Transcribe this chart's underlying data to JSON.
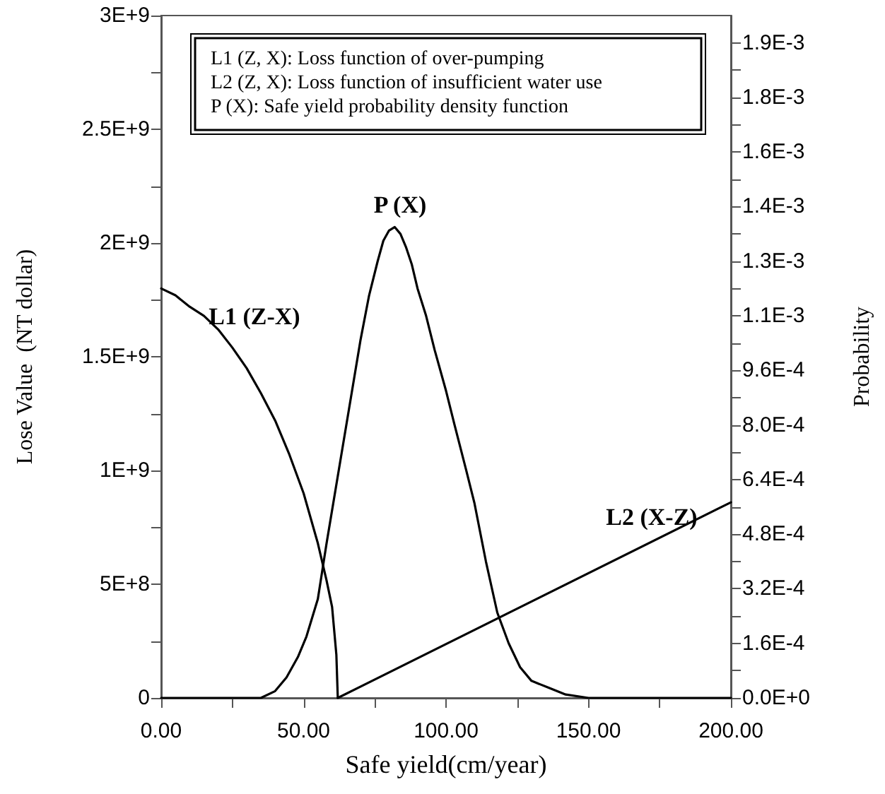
{
  "chart_data": {
    "type": "line",
    "xlabel": "Safe yield(cm/year)",
    "ylabel": "Lose Value  (NT dollar)",
    "y2label": "Probability",
    "xlim": [
      0,
      200
    ],
    "xticks": [
      {
        "value": 0,
        "label": "0.00"
      },
      {
        "value": 25,
        "label": null
      },
      {
        "value": 50,
        "label": "50.00"
      },
      {
        "value": 75,
        "label": null
      },
      {
        "value": 100,
        "label": "100.00"
      },
      {
        "value": 125,
        "label": null
      },
      {
        "value": 150,
        "label": "150.00"
      },
      {
        "value": 175,
        "label": null
      },
      {
        "value": 200,
        "label": "200.00"
      }
    ],
    "ylim": [
      0,
      3000000000
    ],
    "yticks": [
      0,
      {
        "value": 250000000,
        "label": null
      },
      {
        "value": 500000000,
        "label": "5E+8"
      },
      {
        "value": 750000000,
        "label": null
      },
      {
        "value": 1000000000,
        "label": "1E+9"
      },
      {
        "value": 1250000000,
        "label": null
      },
      {
        "value": 1500000000,
        "label": "1.5E+9"
      },
      {
        "value": 1750000000,
        "label": null
      },
      {
        "value": 2000000000,
        "label": "2E+9"
      },
      {
        "value": 2250000000,
        "label": null
      },
      {
        "value": 2500000000,
        "label": "2.5E+9"
      },
      {
        "value": 2750000000,
        "label": null
      },
      {
        "value": 3000000000,
        "label": "3E+9"
      }
    ],
    "y2lim": [
      0,
      0.002
    ],
    "y2ticks": [
      {
        "value": 0,
        "label": "0.0E+0"
      },
      {
        "value": 8e-05,
        "label": null
      },
      {
        "value": 0.00016,
        "label": "1.6E-4"
      },
      {
        "value": 0.00024,
        "label": null
      },
      {
        "value": 0.00032,
        "label": "3.2E-4"
      },
      {
        "value": 0.0004,
        "label": null
      },
      {
        "value": 0.00048,
        "label": "4.8E-4"
      },
      {
        "value": 0.00056,
        "label": null
      },
      {
        "value": 0.00064,
        "label": "6.4E-4"
      },
      {
        "value": 0.00072,
        "label": null
      },
      {
        "value": 0.0008,
        "label": "8.0E-4"
      },
      {
        "value": 0.00088,
        "label": null
      },
      {
        "value": 0.00096,
        "label": "9.6E-4"
      },
      {
        "value": 0.00104,
        "label": null
      },
      {
        "value": 0.00112,
        "label": "1.1E-3"
      },
      {
        "value": 0.0012,
        "label": null
      },
      {
        "value": 0.00128,
        "label": "1.3E-3"
      },
      {
        "value": 0.00136,
        "label": null
      },
      {
        "value": 0.00144,
        "label": "1.4E-3"
      },
      {
        "value": 0.00152,
        "label": null
      },
      {
        "value": 0.0016,
        "label": "1.6E-3"
      },
      {
        "value": 0.00168,
        "label": null
      },
      {
        "value": 0.00176,
        "label": "1.8E-3"
      },
      {
        "value": 0.00184,
        "label": null
      },
      {
        "value": 0.00192,
        "label": "1.9E-3"
      }
    ],
    "series": [
      {
        "name": "L1 (Z-X)",
        "color": "#000000",
        "x": [
          0,
          5,
          10,
          15,
          20,
          25,
          30,
          35,
          40,
          45,
          50,
          55,
          58,
          60,
          61.5,
          62
        ],
        "values": [
          1800000000,
          1770000000,
          1720000000,
          1680000000,
          1620000000,
          1540000000,
          1450000000,
          1340000000,
          1220000000,
          1070000000,
          900000000,
          680000000,
          520000000,
          400000000,
          190000000,
          0
        ]
      },
      {
        "name": "L2 (X-Z)",
        "color": "#000000",
        "x": [
          62,
          200
        ],
        "values": [
          0,
          860000000
        ]
      },
      {
        "name": "P (X)",
        "color": "#000000",
        "axis": "y2",
        "x": [
          0,
          30,
          35,
          40,
          44,
          48,
          51,
          55,
          58,
          62,
          66,
          70,
          73,
          76,
          78,
          80,
          82,
          84,
          86,
          88,
          90,
          93,
          96,
          100,
          103,
          107,
          110,
          114,
          118,
          122,
          126,
          130,
          136,
          142,
          150,
          165,
          200
        ],
        "values": [
          0,
          0,
          0,
          2e-05,
          6e-05,
          0.00012,
          0.00018,
          0.00029,
          0.00045,
          0.00065,
          0.00085,
          0.00105,
          0.00118,
          0.00128,
          0.00134,
          0.00137,
          0.00138,
          0.00136,
          0.00132,
          0.00127,
          0.0012,
          0.00112,
          0.00102,
          0.0009,
          0.0008,
          0.00067,
          0.00057,
          0.0004,
          0.00025,
          0.00016,
          9e-05,
          5e-05,
          3e-05,
          1e-05,
          0,
          0,
          0
        ]
      }
    ],
    "annotations": [
      "L1 (Z, X): Loss function of over-pumping",
      "L2 (Z, X): Loss function of insufficient water use",
      "P (X): Safe yield probability density function"
    ],
    "grid": false,
    "legend": false,
    "marker": "none",
    "line_style": "solid"
  }
}
